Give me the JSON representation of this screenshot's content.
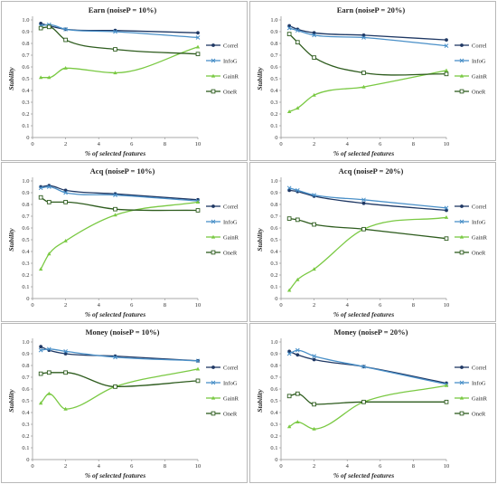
{
  "figure": {
    "colors": {
      "Correl": "#1f3864",
      "InfoG": "#4a90c8",
      "GainR": "#7ac943",
      "OneR": "#2e5c1e"
    },
    "markers": {
      "Correl": "circle",
      "InfoG": "x",
      "GainR": "triangle",
      "OneR": "square"
    }
  },
  "chart_data": [
    {
      "type": "line",
      "title": "Earn (noiseP = 10%)",
      "xlabel": "% of selected features",
      "ylabel": "Stability",
      "xlim": [
        0,
        10
      ],
      "ylim": [
        0,
        1
      ],
      "xticks": [
        "0",
        "2",
        "4",
        "6",
        "8",
        "10"
      ],
      "yticks": [
        "0",
        "0.1",
        "0.2",
        "0.3",
        "0.4",
        "0.5",
        "0.6",
        "0.7",
        "0.8",
        "0.9",
        "1.0"
      ],
      "legend": "right",
      "grid": false,
      "series": [
        {
          "name": "Correl",
          "x": [
            0.5,
            1,
            2,
            5,
            10
          ],
          "y": [
            0.97,
            0.95,
            0.92,
            0.91,
            0.89
          ]
        },
        {
          "name": "InfoG",
          "x": [
            0.5,
            1,
            2,
            5,
            10
          ],
          "y": [
            0.95,
            0.96,
            0.92,
            0.9,
            0.85
          ]
        },
        {
          "name": "GainR",
          "x": [
            0.5,
            1,
            2,
            5,
            10
          ],
          "y": [
            0.51,
            0.51,
            0.59,
            0.55,
            0.77
          ]
        },
        {
          "name": "OneR",
          "x": [
            0.5,
            1,
            2,
            5,
            10
          ],
          "y": [
            0.93,
            0.94,
            0.83,
            0.75,
            0.71
          ]
        }
      ]
    },
    {
      "type": "line",
      "title": "Earn (noiseP = 20%)",
      "xlabel": "% of selected features",
      "ylabel": "Stability",
      "xlim": [
        0,
        10
      ],
      "ylim": [
        0,
        1
      ],
      "xticks": [
        "0",
        "2",
        "4",
        "6",
        "8",
        "10"
      ],
      "yticks": [
        "0",
        "0.1",
        "0.2",
        "0.3",
        "0.4",
        "0.5",
        "0.6",
        "0.7",
        "0.8",
        "0.9",
        "1.0"
      ],
      "legend": "right",
      "grid": false,
      "series": [
        {
          "name": "Correl",
          "x": [
            0.5,
            1,
            2,
            5,
            10
          ],
          "y": [
            0.95,
            0.92,
            0.89,
            0.87,
            0.83
          ]
        },
        {
          "name": "InfoG",
          "x": [
            0.5,
            1,
            2,
            5,
            10
          ],
          "y": [
            0.93,
            0.91,
            0.87,
            0.85,
            0.78
          ]
        },
        {
          "name": "GainR",
          "x": [
            0.5,
            1,
            2,
            5,
            10
          ],
          "y": [
            0.22,
            0.25,
            0.36,
            0.43,
            0.57
          ]
        },
        {
          "name": "OneR",
          "x": [
            0.5,
            1,
            2,
            5,
            10
          ],
          "y": [
            0.88,
            0.81,
            0.68,
            0.55,
            0.54
          ]
        }
      ]
    },
    {
      "type": "line",
      "title": "Acq (noiseP = 10%)",
      "xlabel": "% of selected features",
      "ylabel": "Stability",
      "xlim": [
        0,
        10
      ],
      "ylim": [
        0,
        1
      ],
      "xticks": [
        "0",
        "2",
        "4",
        "6",
        "8",
        "10"
      ],
      "yticks": [
        "0",
        "0.1",
        "0.2",
        "0.3",
        "0.4",
        "0.5",
        "0.6",
        "0.7",
        "0.8",
        "0.9",
        "1.0"
      ],
      "legend": "right",
      "grid": false,
      "series": [
        {
          "name": "Correl",
          "x": [
            0.5,
            1,
            2,
            5,
            10
          ],
          "y": [
            0.95,
            0.96,
            0.92,
            0.89,
            0.84
          ]
        },
        {
          "name": "InfoG",
          "x": [
            0.5,
            1,
            2,
            5,
            10
          ],
          "y": [
            0.94,
            0.95,
            0.9,
            0.88,
            0.83
          ]
        },
        {
          "name": "GainR",
          "x": [
            0.5,
            1,
            2,
            5,
            10
          ],
          "y": [
            0.25,
            0.38,
            0.49,
            0.71,
            0.82
          ]
        },
        {
          "name": "OneR",
          "x": [
            0.5,
            1,
            2,
            5,
            10
          ],
          "y": [
            0.86,
            0.82,
            0.82,
            0.76,
            0.75
          ]
        }
      ]
    },
    {
      "type": "line",
      "title": "Acq (noiseP = 20%)",
      "xlabel": "% of selected features",
      "ylabel": "Stability",
      "xlim": [
        0,
        10
      ],
      "ylim": [
        0,
        1
      ],
      "xticks": [
        "0",
        "2",
        "4",
        "6",
        "8",
        "10"
      ],
      "yticks": [
        "0",
        "0.1",
        "0.2",
        "0.3",
        "0.4",
        "0.5",
        "0.6",
        "0.7",
        "0.8",
        "0.9",
        "1.0"
      ],
      "legend": "right",
      "grid": false,
      "series": [
        {
          "name": "Correl",
          "x": [
            0.5,
            1,
            2,
            5,
            10
          ],
          "y": [
            0.92,
            0.91,
            0.87,
            0.81,
            0.75
          ]
        },
        {
          "name": "InfoG",
          "x": [
            0.5,
            1,
            2,
            5,
            10
          ],
          "y": [
            0.94,
            0.92,
            0.88,
            0.84,
            0.77
          ]
        },
        {
          "name": "GainR",
          "x": [
            0.5,
            1,
            2,
            5,
            10
          ],
          "y": [
            0.07,
            0.16,
            0.25,
            0.59,
            0.69
          ]
        },
        {
          "name": "OneR",
          "x": [
            0.5,
            1,
            2,
            5,
            10
          ],
          "y": [
            0.68,
            0.67,
            0.63,
            0.59,
            0.51
          ]
        }
      ]
    },
    {
      "type": "line",
      "title": "Money (noiseP = 10%)",
      "xlabel": "% of selected features",
      "ylabel": "Stability",
      "xlim": [
        0,
        10
      ],
      "ylim": [
        0,
        1
      ],
      "xticks": [
        "0",
        "2",
        "4",
        "6",
        "8",
        "10"
      ],
      "yticks": [
        "0",
        "0.1",
        "0.2",
        "0.3",
        "0.4",
        "0.5",
        "0.6",
        "0.7",
        "0.8",
        "0.9",
        "1.0"
      ],
      "legend": "right",
      "grid": false,
      "series": [
        {
          "name": "Correl",
          "x": [
            0.5,
            1,
            2,
            5,
            10
          ],
          "y": [
            0.96,
            0.93,
            0.9,
            0.88,
            0.84
          ]
        },
        {
          "name": "InfoG",
          "x": [
            0.5,
            1,
            2,
            5,
            10
          ],
          "y": [
            0.93,
            0.94,
            0.92,
            0.87,
            0.84
          ]
        },
        {
          "name": "GainR",
          "x": [
            0.5,
            1,
            2,
            5,
            10
          ],
          "y": [
            0.48,
            0.56,
            0.43,
            0.62,
            0.77
          ]
        },
        {
          "name": "OneR",
          "x": [
            0.5,
            1,
            2,
            5,
            10
          ],
          "y": [
            0.73,
            0.74,
            0.74,
            0.62,
            0.67
          ]
        }
      ]
    },
    {
      "type": "line",
      "title": "Money (noiseP = 20%)",
      "xlabel": "% of selected features",
      "ylabel": "Stability",
      "xlim": [
        0,
        10
      ],
      "ylim": [
        0,
        1
      ],
      "xticks": [
        "0",
        "2",
        "4",
        "6",
        "8",
        "10"
      ],
      "yticks": [
        "0",
        "0.1",
        "0.2",
        "0.3",
        "0.4",
        "0.5",
        "0.6",
        "0.7",
        "0.8",
        "0.9",
        "1.0"
      ],
      "legend": "right",
      "grid": false,
      "series": [
        {
          "name": "Correl",
          "x": [
            0.5,
            1,
            2,
            5,
            10
          ],
          "y": [
            0.92,
            0.89,
            0.85,
            0.79,
            0.65
          ]
        },
        {
          "name": "InfoG",
          "x": [
            0.5,
            1,
            2,
            5,
            10
          ],
          "y": [
            0.9,
            0.93,
            0.88,
            0.79,
            0.64
          ]
        },
        {
          "name": "GainR",
          "x": [
            0.5,
            1,
            2,
            5,
            10
          ],
          "y": [
            0.28,
            0.32,
            0.26,
            0.49,
            0.63
          ]
        },
        {
          "name": "OneR",
          "x": [
            0.5,
            1,
            2,
            5,
            10
          ],
          "y": [
            0.54,
            0.56,
            0.47,
            0.49,
            0.49
          ]
        }
      ]
    }
  ]
}
